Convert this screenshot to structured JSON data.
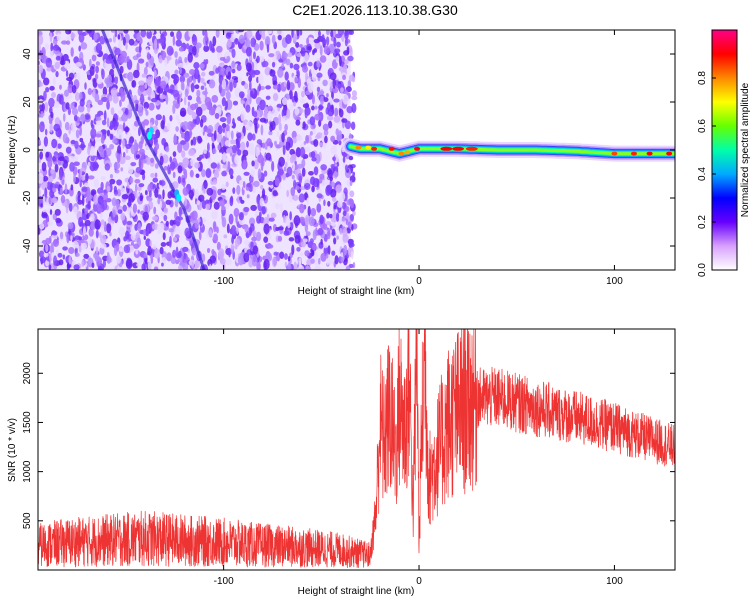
{
  "title": "C2E1.2026.113.10.38.G30",
  "colors": {
    "snr_line": "#ee3333",
    "spectrogram_background": "#7a3cff",
    "colorbar_stops": [
      "#ffffff",
      "#d8a0ff",
      "#6600ff",
      "#0000ff",
      "#00aaff",
      "#00ffaa",
      "#66ff00",
      "#ffff00",
      "#ff8800",
      "#ff0000",
      "#ff0088"
    ]
  },
  "chart_data": [
    {
      "type": "heatmap",
      "title": "",
      "xlabel": "Height of straight line (km)",
      "ylabel": "Frequency (Hz)",
      "xlim": [
        -195,
        131
      ],
      "ylim": [
        -50,
        50
      ],
      "xticks": [
        -100,
        0,
        100
      ],
      "yticks": [
        -40,
        -20,
        0,
        20,
        40
      ],
      "noise_region_x": [
        -195,
        -35
      ],
      "tone_track": {
        "x": [
          -35,
          -30,
          -20,
          -10,
          0,
          20,
          40,
          60,
          80,
          100,
          120,
          131
        ],
        "frequency": [
          1.5,
          0.5,
          0.5,
          -1.5,
          0.5,
          0.5,
          0,
          0,
          -0.5,
          -1.5,
          -1.5,
          -1.5
        ]
      },
      "diagonal_streak": {
        "x": [
          -162,
          -140,
          -120,
          -110
        ],
        "frequency": [
          50,
          5,
          -25,
          -50
        ]
      },
      "colorbar": {
        "label": "Normalized spectral amplitude",
        "range": [
          0,
          1
        ],
        "ticks": [
          0.0,
          0.2,
          0.4,
          0.6,
          0.8
        ]
      }
    },
    {
      "type": "line",
      "title": "",
      "xlabel": "Height of straight line (km)",
      "ylabel": "SNR (10 * v/v)",
      "xlim": [
        -195,
        131
      ],
      "ylim": [
        0,
        2450
      ],
      "xticks": [
        -100,
        0,
        100
      ],
      "yticks": [
        500,
        1000,
        1500,
        2000
      ],
      "series": [
        {
          "x": [
            -195,
            -180,
            -160,
            -140,
            -120,
            -100,
            -80,
            -60,
            -40,
            -25,
            -22,
            -20,
            -18,
            -15,
            -12,
            -10,
            -7,
            -5,
            -3,
            -1,
            0,
            1,
            3,
            5,
            10,
            15,
            20,
            25,
            30,
            40,
            50,
            60,
            70,
            80,
            90,
            100,
            110,
            120,
            131
          ],
          "values": [
            250,
            280,
            300,
            320,
            300,
            280,
            250,
            230,
            200,
            150,
            600,
            1500,
            1300,
            1600,
            1200,
            1700,
            1400,
            2000,
            600,
            2400,
            200,
            1200,
            2200,
            900,
            1200,
            1500,
            1600,
            1700,
            1750,
            1750,
            1700,
            1650,
            1600,
            1550,
            1500,
            1450,
            1380,
            1320,
            1250
          ]
        }
      ]
    }
  ]
}
